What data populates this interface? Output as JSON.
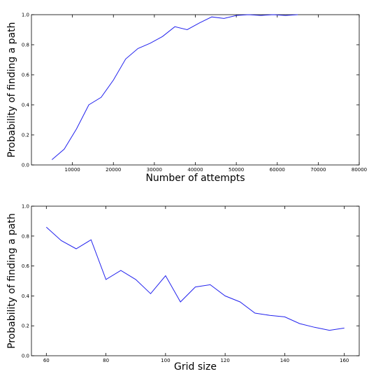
{
  "chart_data": [
    {
      "type": "line",
      "xlabel": "Number of attempts",
      "ylabel": "Probability of finding a path",
      "xlim": [
        0,
        80000
      ],
      "ylim": [
        0.0,
        1.0
      ],
      "xticks": [
        "10000",
        "20000",
        "30000",
        "40000",
        "50000",
        "60000",
        "70000",
        "80000"
      ],
      "yticks": [
        "0.0",
        "0.2",
        "0.4",
        "0.6",
        "0.8",
        "1.0"
      ],
      "series": [
        {
          "x": [
            5000,
            8000,
            11000,
            14000,
            17000,
            20000,
            23000,
            26000,
            29000,
            32000,
            35000,
            38000,
            41000,
            44000,
            47000,
            50000,
            53000,
            56000,
            59000,
            62000,
            65000
          ],
          "values": [
            0.035,
            0.105,
            0.24,
            0.4,
            0.45,
            0.565,
            0.705,
            0.775,
            0.81,
            0.855,
            0.92,
            0.9,
            0.945,
            0.985,
            0.975,
            0.995,
            1.0,
            0.995,
            1.0,
            0.995,
            1.0
          ],
          "color": "#2222ee"
        }
      ]
    },
    {
      "type": "line",
      "xlabel": "Grid size",
      "ylabel": "Probability of finding a path",
      "xlim": [
        55,
        165
      ],
      "ylim": [
        0.0,
        1.0
      ],
      "xticks": [
        "60",
        "80",
        "100",
        "120",
        "140",
        "160"
      ],
      "yticks": [
        "0.0",
        "0.2",
        "0.4",
        "0.6",
        "0.8",
        "1.0"
      ],
      "series": [
        {
          "x": [
            60,
            65,
            70,
            75,
            80,
            85,
            90,
            95,
            100,
            105,
            110,
            115,
            120,
            125,
            130,
            135,
            140,
            145,
            150,
            155,
            160
          ],
          "values": [
            0.86,
            0.77,
            0.715,
            0.775,
            0.51,
            0.57,
            0.51,
            0.415,
            0.535,
            0.36,
            0.46,
            0.475,
            0.4,
            0.36,
            0.285,
            0.27,
            0.26,
            0.215,
            0.19,
            0.17,
            0.185
          ],
          "color": "#2222ee"
        }
      ]
    }
  ]
}
